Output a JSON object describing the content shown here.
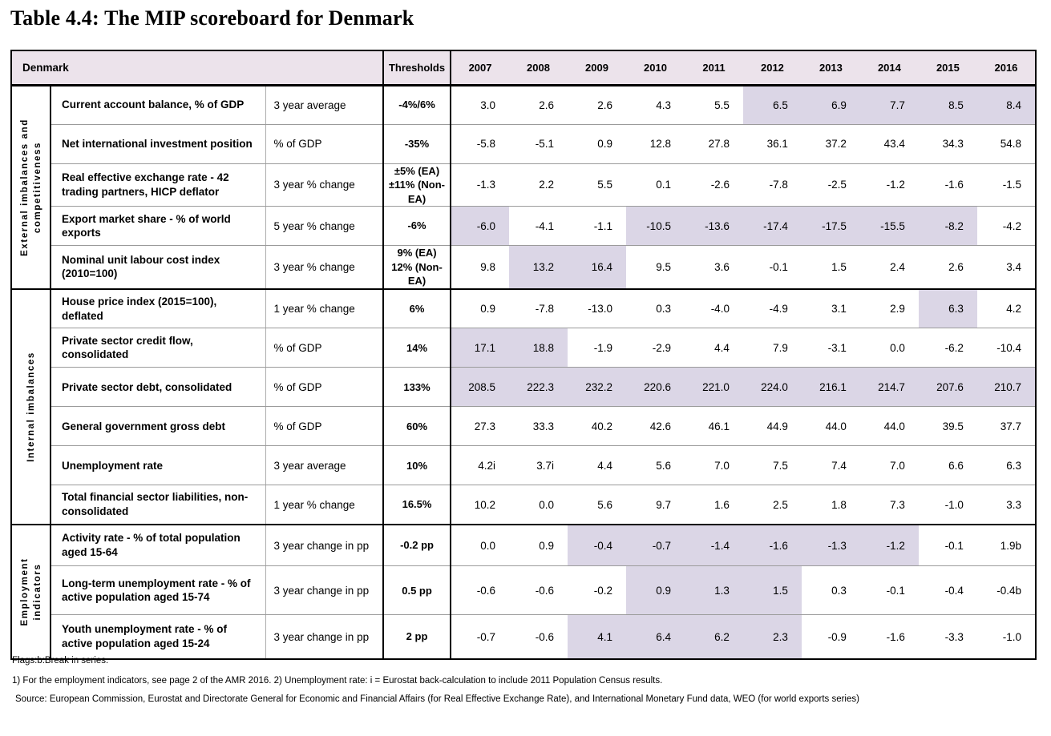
{
  "title": "Table 4.4: The MIP scoreboard for Denmark",
  "colors": {
    "header_bg": "#ece3eb",
    "highlight_bg": "#dbd6e6"
  },
  "table": {
    "corner_label": "Denmark",
    "thresholds_label": "Thresholds",
    "years": [
      "2007",
      "2008",
      "2009",
      "2010",
      "2011",
      "2012",
      "2013",
      "2014",
      "2015",
      "2016"
    ],
    "sections": [
      {
        "group": "External imbalances and\ncompetitiveness",
        "rows": [
          {
            "indicator": "Current account balance, % of GDP",
            "unit": "3 year average",
            "threshold": "-4%/6%",
            "values": [
              "3.0",
              "2.6",
              "2.6",
              "4.3",
              "5.5",
              "6.5",
              "6.9",
              "7.7",
              "8.5",
              "8.4"
            ],
            "highlight": [
              5,
              6,
              7,
              8,
              9
            ]
          },
          {
            "indicator": "Net international investment position",
            "unit": "% of GDP",
            "threshold": "-35%",
            "values": [
              "-5.8",
              "-5.1",
              "0.9",
              "12.8",
              "27.8",
              "36.1",
              "37.2",
              "43.4",
              "34.3",
              "54.8"
            ],
            "highlight": []
          },
          {
            "indicator": "Real effective exchange rate - 42 trading partners, HICP deflator",
            "unit": "3 year % change",
            "threshold": "±5% (EA)\n±11% (Non-EA)",
            "values": [
              "-1.3",
              "2.2",
              "5.5",
              "0.1",
              "-2.6",
              "-7.8",
              "-2.5",
              "-1.2",
              "-1.6",
              "-1.5"
            ],
            "highlight": []
          },
          {
            "indicator": "Export market share - % of world exports",
            "unit": "5 year % change",
            "threshold": "-6%",
            "values": [
              "-6.0",
              "-4.1",
              "-1.1",
              "-10.5",
              "-13.6",
              "-17.4",
              "-17.5",
              "-15.5",
              "-8.2",
              "-4.2"
            ],
            "highlight": [
              0,
              3,
              4,
              5,
              6,
              7,
              8
            ]
          },
          {
            "indicator": "Nominal unit labour cost index (2010=100)",
            "unit": "3 year % change",
            "threshold": "9% (EA)\n12% (Non-EA)",
            "values": [
              "9.8",
              "13.2",
              "16.4",
              "9.5",
              "3.6",
              "-0.1",
              "1.5",
              "2.4",
              "2.6",
              "3.4"
            ],
            "highlight": [
              1,
              2
            ]
          }
        ]
      },
      {
        "group": "Internal imbalances",
        "rows": [
          {
            "indicator": "House price index (2015=100), deflated",
            "unit": "1 year % change",
            "threshold": "6%",
            "values": [
              "0.9",
              "-7.8",
              "-13.0",
              "0.3",
              "-4.0",
              "-4.9",
              "3.1",
              "2.9",
              "6.3",
              "4.2"
            ],
            "highlight": [
              8
            ]
          },
          {
            "indicator": "Private sector credit flow, consolidated",
            "unit": "% of GDP",
            "threshold": "14%",
            "values": [
              "17.1",
              "18.8",
              "-1.9",
              "-2.9",
              "4.4",
              "7.9",
              "-3.1",
              "0.0",
              "-6.2",
              "-10.4"
            ],
            "highlight": [
              0,
              1
            ]
          },
          {
            "indicator": "Private sector debt, consolidated",
            "unit": "% of GDP",
            "threshold": "133%",
            "values": [
              "208.5",
              "222.3",
              "232.2",
              "220.6",
              "221.0",
              "224.0",
              "216.1",
              "214.7",
              "207.6",
              "210.7"
            ],
            "highlight": [
              0,
              1,
              2,
              3,
              4,
              5,
              6,
              7,
              8,
              9
            ]
          },
          {
            "indicator": "General government gross debt",
            "unit": "% of GDP",
            "threshold": "60%",
            "values": [
              "27.3",
              "33.3",
              "40.2",
              "42.6",
              "46.1",
              "44.9",
              "44.0",
              "44.0",
              "39.5",
              "37.7"
            ],
            "highlight": []
          },
          {
            "indicator": "Unemployment rate",
            "unit": "3 year average",
            "threshold": "10%",
            "values": [
              "4.2i",
              "3.7i",
              "4.4",
              "5.6",
              "7.0",
              "7.5",
              "7.4",
              "7.0",
              "6.6",
              "6.3"
            ],
            "highlight": []
          },
          {
            "indicator": "Total financial sector liabilities, non-consolidated",
            "unit": "1 year % change",
            "threshold": "16.5%",
            "values": [
              "10.2",
              "0.0",
              "5.6",
              "9.7",
              "1.6",
              "2.5",
              "1.8",
              "7.3",
              "-1.0",
              "3.3"
            ],
            "highlight": []
          }
        ]
      },
      {
        "group": "Employment\nindicators",
        "rows": [
          {
            "indicator": "Activity rate - % of total population aged 15-64",
            "unit": "3 year change in pp",
            "threshold": "-0.2 pp",
            "values": [
              "0.0",
              "0.9",
              "-0.4",
              "-0.7",
              "-1.4",
              "-1.6",
              "-1.3",
              "-1.2",
              "-0.1",
              "1.9b"
            ],
            "highlight": [
              2,
              3,
              4,
              5,
              6,
              7
            ]
          },
          {
            "indicator": "Long-term unemployment rate - % of active population aged 15-74",
            "unit": "3 year change in pp",
            "threshold": "0.5 pp",
            "values": [
              "-0.6",
              "-0.6",
              "-0.2",
              "0.9",
              "1.3",
              "1.5",
              "0.3",
              "-0.1",
              "-0.4",
              "-0.4b"
            ],
            "highlight": [
              3,
              4,
              5
            ]
          },
          {
            "indicator": "Youth unemployment rate - % of active population aged 15-24",
            "unit": "3 year change in pp",
            "threshold": "2 pp",
            "values": [
              "-0.7",
              "-0.6",
              "4.1",
              "6.4",
              "6.2",
              "2.3",
              "-0.9",
              "-1.6",
              "-3.3",
              "-1.0"
            ],
            "highlight": [
              2,
              3,
              4,
              5
            ]
          }
        ]
      }
    ]
  },
  "footnotes": {
    "flags": "Flags:b:Break in series.",
    "note1": "1) For the employment indicators, see page 2 of the AMR 2016. 2) Unemployment rate: i = Eurostat back-calculation to include 2011 Population Census results.",
    "source": "Source: European Commission, Eurostat and Directorate General for Economic and Financial Affairs (for Real Effective Exchange Rate), and International Monetary Fund data, WEO (for world exports series)"
  }
}
